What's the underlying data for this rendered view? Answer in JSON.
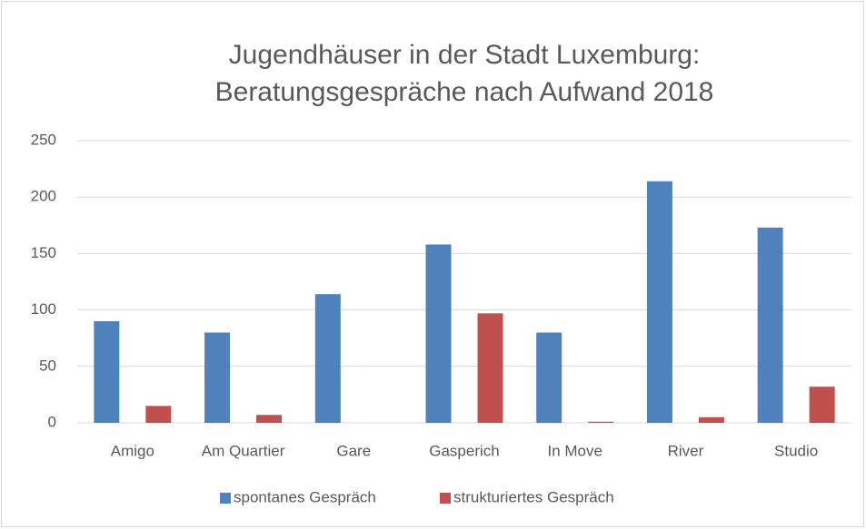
{
  "chart_data": {
    "type": "bar",
    "title": [
      "Jugendhäuser in der Stadt Luxemburg:",
      "Beratungsgespräche nach Aufwand 2018"
    ],
    "categories": [
      "Amigo",
      "Am Quartier",
      "Gare",
      "Gasperich",
      "In Move",
      "River",
      "Studio"
    ],
    "series": [
      {
        "name": "spontanes Gespräch",
        "color": "#4f81bd",
        "values": [
          90,
          80,
          114,
          158,
          80,
          214,
          173
        ]
      },
      {
        "name": "strukturiertes Gespräch",
        "color": "#c0504d",
        "values": [
          15,
          7,
          0,
          97,
          1,
          5,
          32
        ]
      }
    ],
    "ylim": [
      0,
      250
    ],
    "yticks": [
      0,
      50,
      100,
      150,
      200,
      250
    ],
    "grid": true,
    "legend": "bottom"
  }
}
